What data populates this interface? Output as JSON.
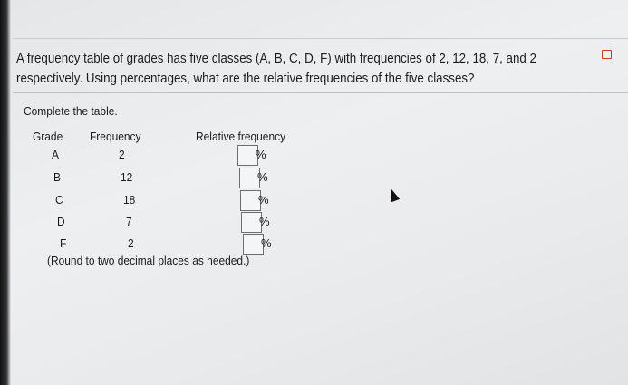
{
  "question": {
    "text": "A frequency table of grades has five classes (A, B, C, D, F) with frequencies of 2, 12, 18, 7, and 2 respectively. Using percentages, what are the relative frequencies of the five classes?",
    "icon": "copy-icon"
  },
  "instruction": "Complete the table.",
  "table": {
    "headers": {
      "grade": "Grade",
      "frequency": "Frequency",
      "relative": "Relative frequency"
    },
    "rows": [
      {
        "grade": "A",
        "frequency": "2",
        "value": "",
        "unit": "%"
      },
      {
        "grade": "B",
        "frequency": "12",
        "value": "",
        "unit": "%"
      },
      {
        "grade": "C",
        "frequency": "18",
        "value": "",
        "unit": "%"
      },
      {
        "grade": "D",
        "frequency": "7",
        "value": "",
        "unit": "%"
      },
      {
        "grade": "F",
        "frequency": "2",
        "value": "",
        "unit": "%"
      }
    ]
  },
  "note": "(Round to two decimal places as needed.)",
  "colors": {
    "icon": "#c0392b"
  }
}
